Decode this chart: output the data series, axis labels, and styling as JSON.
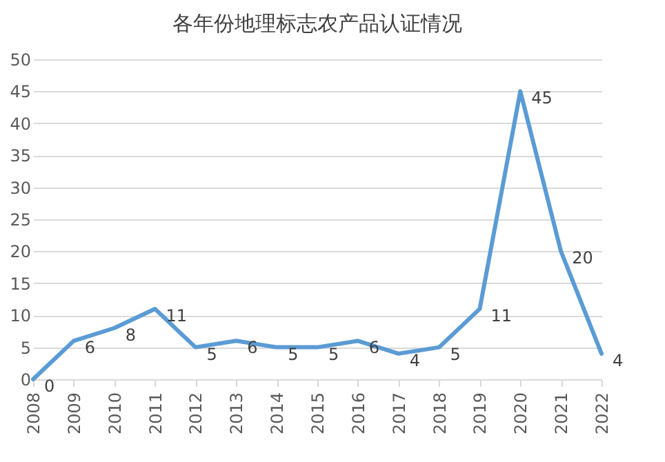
{
  "chart_data": {
    "type": "line",
    "title": "各年份地理标志农产品认证情况",
    "categories": [
      "2008",
      "2009",
      "2010",
      "2011",
      "2012",
      "2013",
      "2014",
      "2015",
      "2016",
      "2017",
      "2018",
      "2019",
      "2020",
      "2021",
      "2022"
    ],
    "series": [
      {
        "color": "#5b9bd5",
        "values": [
          0,
          6,
          8,
          11,
          5,
          6,
          5,
          5,
          6,
          4,
          5,
          11,
          45,
          20,
          4
        ]
      }
    ],
    "ylim": [
      0,
      50
    ],
    "yticks": [
      0,
      5,
      10,
      15,
      20,
      25,
      30,
      35,
      40,
      45,
      50
    ],
    "grid": "y",
    "data_labels": true,
    "marker": "none",
    "line_style": "solid",
    "legend": false
  }
}
